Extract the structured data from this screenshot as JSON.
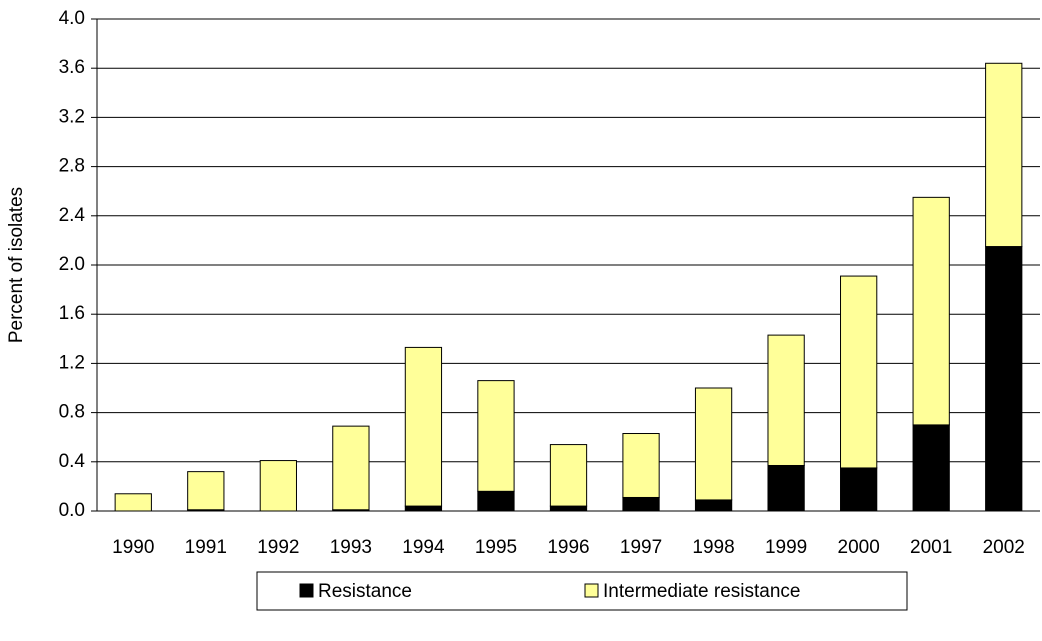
{
  "chart_data": {
    "type": "stacked_bar",
    "y_label": "Percent of isolates",
    "categories": [
      "1990",
      "1991",
      "1992",
      "1993",
      "1994",
      "1995",
      "1996",
      "1997",
      "1998",
      "1999",
      "2000",
      "2001",
      "2002"
    ],
    "series": [
      {
        "name": "Resistance",
        "color": "#000000",
        "values": [
          0,
          0.01,
          0,
          0.01,
          0.04,
          0.16,
          0.04,
          0.11,
          0.09,
          0.37,
          0.35,
          0.7,
          2.15
        ]
      },
      {
        "name": "Intermediate resistance",
        "color": "#ffff99",
        "values": [
          0.14,
          0.31,
          0.41,
          0.68,
          1.29,
          0.9,
          0.5,
          0.52,
          0.91,
          1.06,
          1.56,
          1.85,
          1.49
        ]
      }
    ],
    "ylim": [
      0,
      4
    ],
    "yticks": [
      {
        "value": 0,
        "label": "0.0"
      },
      0.4,
      0.8,
      1.2,
      1.6,
      {
        "value": 2,
        "label": "2.0"
      },
      2.4,
      2.8,
      3.2,
      3.6,
      {
        "value": 4,
        "label": "4.0"
      }
    ],
    "grid": true,
    "legend": "bottom"
  }
}
